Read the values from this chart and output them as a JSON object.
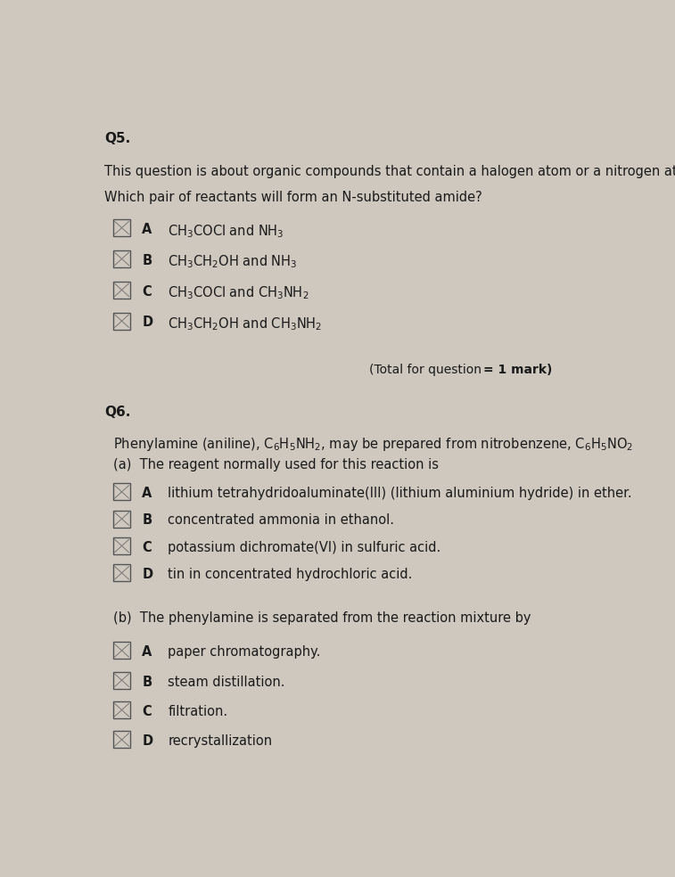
{
  "bg_color": "#cec8be",
  "text_color": "#1a1a1a",
  "page_width": 7.57,
  "page_height": 9.84,
  "q5_label": "Q5.",
  "q5_intro": "This question is about organic compounds that contain a halogen atom or a nitrogen atom.",
  "q5_question": "Which pair of reactants will form an N-substituted amide?",
  "q5_options_latex": [
    "CH$_3$COCl and NH$_3$",
    "CH$_3$CH$_2$OH and NH$_3$",
    "CH$_3$COCl and CH$_3$NH$_2$",
    "CH$_3$CH$_2$OH and CH$_3$NH$_2$"
  ],
  "q5_letters": [
    "A",
    "B",
    "C",
    "D"
  ],
  "q5_total_normal": "(Total for question ",
  "q5_total_bold": "= 1 mark)",
  "q6_label": "Q6.",
  "q6_intro": "Phenylamine (aniline), C$_6$H$_5$NH$_2$, may be prepared from nitrobenzene, C$_6$H$_5$NO$_2$",
  "q6a_label": "(a)  The reagent normally used for this reaction is",
  "q6a_letters": [
    "A",
    "B",
    "C",
    "D"
  ],
  "q6a_options": [
    "lithium tetrahydridoaluminate(III) (lithium aluminium hydride) in ether.",
    "concentrated ammonia in ethanol.",
    "potassium dichromate(VI) in sulfuric acid.",
    "tin in concentrated hydrochloric acid."
  ],
  "q6b_label": "(b)  The phenylamine is separated from the reaction mixture by",
  "q6b_letters": [
    "A",
    "B",
    "C",
    "D"
  ],
  "q6b_options": [
    "paper chromatography.",
    "steam distillation.",
    "filtration.",
    "recrystallization"
  ]
}
